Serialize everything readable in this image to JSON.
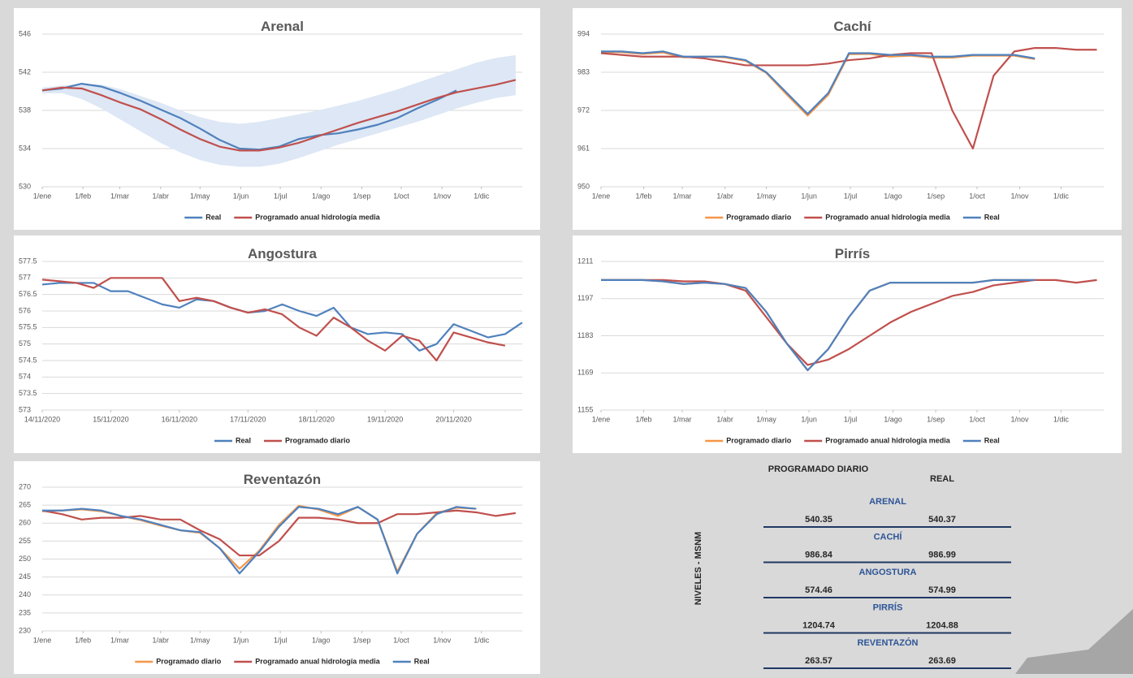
{
  "chart_data": [
    {
      "type": "line",
      "title": "Arenal",
      "x": [
        0,
        15,
        30,
        45,
        60,
        75,
        90,
        105,
        120,
        135,
        150,
        165,
        180,
        195,
        210,
        225,
        240,
        255,
        270,
        285,
        300,
        315,
        330,
        345,
        360
      ],
      "xlim": [
        0,
        365
      ],
      "xticks": [
        {
          "value": 0,
          "label": "1/ene"
        },
        {
          "value": 31,
          "label": "1/feb"
        },
        {
          "value": 59,
          "label": "1/mar"
        },
        {
          "value": 90,
          "label": "1/abr"
        },
        {
          "value": 120,
          "label": "1/may"
        },
        {
          "value": 151,
          "label": "1/jun"
        },
        {
          "value": 181,
          "label": "1/jul"
        },
        {
          "value": 212,
          "label": "1/ago"
        },
        {
          "value": 243,
          "label": "1/sep"
        },
        {
          "value": 273,
          "label": "1/oct"
        },
        {
          "value": 304,
          "label": "1/nov"
        },
        {
          "value": 334,
          "label": "1/dic"
        }
      ],
      "ylim": [
        530,
        546
      ],
      "yticks": [
        530,
        534,
        538,
        542,
        546
      ],
      "grid": true,
      "band_color": "#dde7f5",
      "band_upper": [
        540.4,
        540.6,
        540.8,
        540.7,
        540.2,
        539.5,
        538.8,
        538.0,
        537.3,
        536.8,
        536.6,
        536.8,
        537.2,
        537.6,
        538.0,
        538.5,
        539.0,
        539.6,
        540.2,
        540.9,
        541.6,
        542.3,
        543.0,
        543.5,
        543.8
      ],
      "band_lower": [
        539.8,
        539.8,
        539.2,
        538.2,
        537.0,
        535.8,
        534.6,
        533.6,
        532.8,
        532.3,
        532.1,
        532.1,
        532.4,
        533.0,
        533.7,
        534.4,
        535.0,
        535.6,
        536.2,
        536.8,
        537.5,
        538.2,
        538.8,
        539.3,
        539.6
      ],
      "series": [
        {
          "name": "Real",
          "color": "#4f81bd",
          "values": [
            540.1,
            540.3,
            540.8,
            540.5,
            539.8,
            539.0,
            538.1,
            537.2,
            536.1,
            534.9,
            534.0,
            533.9,
            534.2,
            535.0,
            535.4,
            535.6,
            536.0,
            536.5,
            537.2,
            538.2,
            539.1,
            540.1,
            null,
            null,
            null
          ]
        },
        {
          "name": "Programado anual hidrología media",
          "color": "#c0504d",
          "values": [
            540.1,
            540.4,
            540.3,
            539.6,
            538.8,
            538.1,
            537.1,
            536.0,
            535.0,
            534.2,
            533.8,
            533.8,
            534.1,
            534.6,
            535.3,
            536.0,
            536.7,
            537.3,
            537.9,
            538.6,
            539.3,
            539.9,
            540.3,
            540.7,
            541.2
          ]
        }
      ]
    },
    {
      "type": "line",
      "title": "Cachí",
      "x": [
        0,
        15,
        30,
        45,
        60,
        75,
        90,
        105,
        120,
        135,
        150,
        165,
        180,
        195,
        210,
        225,
        240,
        255,
        270,
        285,
        300,
        315,
        330,
        345,
        360
      ],
      "xlim": [
        0,
        365
      ],
      "xticks": [
        {
          "value": 0,
          "label": "1/ene"
        },
        {
          "value": 31,
          "label": "1/feb"
        },
        {
          "value": 59,
          "label": "1/mar"
        },
        {
          "value": 90,
          "label": "1/abr"
        },
        {
          "value": 120,
          "label": "1/may"
        },
        {
          "value": 151,
          "label": "1/jun"
        },
        {
          "value": 181,
          "label": "1/jul"
        },
        {
          "value": 212,
          "label": "1/ago"
        },
        {
          "value": 243,
          "label": "1/sep"
        },
        {
          "value": 273,
          "label": "1/oct"
        },
        {
          "value": 304,
          "label": "1/nov"
        },
        {
          "value": 334,
          "label": "1/dic"
        }
      ],
      "ylim": [
        950,
        994
      ],
      "yticks": [
        950,
        961,
        972,
        983,
        994
      ],
      "grid": true,
      "series": [
        {
          "name": "Programado diario",
          "color": "#f79646",
          "values": [
            988.8,
            988.8,
            988.3,
            988.7,
            987.3,
            987.5,
            987.3,
            986.3,
            982.8,
            976.5,
            970.5,
            976.5,
            988.2,
            988.3,
            987.5,
            987.8,
            987.2,
            987.2,
            987.8,
            987.8,
            987.8,
            986.8,
            null,
            null,
            null
          ]
        },
        {
          "name": "Programado anual hidrología media",
          "color": "#c0504d",
          "values": [
            988.5,
            988,
            987.5,
            987.5,
            987.5,
            987,
            986,
            985,
            985,
            985,
            985,
            985.5,
            986.5,
            987,
            988,
            988.5,
            988.5,
            972,
            961,
            982,
            989,
            990,
            990,
            989.5,
            989.5
          ]
        },
        {
          "name": "Real",
          "color": "#4f81bd",
          "values": [
            989,
            989,
            988.5,
            989,
            987.5,
            987.5,
            987.5,
            986.5,
            983,
            977,
            971,
            977,
            988.5,
            988.5,
            988,
            988,
            987.5,
            987.5,
            988,
            988,
            988,
            987,
            null,
            null,
            null
          ]
        }
      ]
    },
    {
      "type": "line",
      "title": "Angostura",
      "x": [
        0,
        0.25,
        0.5,
        0.75,
        1,
        1.25,
        1.5,
        1.75,
        2,
        2.25,
        2.5,
        2.75,
        3,
        3.25,
        3.5,
        3.75,
        4,
        4.25,
        4.5,
        4.75,
        5,
        5.25,
        5.5,
        5.75,
        6,
        6.25,
        6.5,
        6.75,
        7
      ],
      "xlim": [
        0,
        7
      ],
      "xticks": [
        {
          "value": 0,
          "label": "14/11/2020"
        },
        {
          "value": 1,
          "label": "15/11/2020"
        },
        {
          "value": 2,
          "label": "16/11/2020"
        },
        {
          "value": 3,
          "label": "17/11/2020"
        },
        {
          "value": 4,
          "label": "18/11/2020"
        },
        {
          "value": 5,
          "label": "19/11/2020"
        },
        {
          "value": 6,
          "label": "20/11/2020"
        }
      ],
      "ylim": [
        573,
        577.5
      ],
      "yticks": [
        573,
        573.5,
        574,
        574.5,
        575,
        575.5,
        576,
        576.5,
        577,
        577.5
      ],
      "grid": true,
      "series": [
        {
          "name": "Real",
          "color": "#4f81bd",
          "values": [
            576.8,
            576.85,
            576.85,
            576.85,
            576.6,
            576.6,
            576.4,
            576.2,
            576.1,
            576.35,
            576.3,
            576.1,
            575.95,
            576.0,
            576.2,
            576.0,
            575.85,
            576.1,
            575.5,
            575.3,
            575.35,
            575.3,
            574.8,
            575.0,
            575.6,
            575.4,
            575.2,
            575.3,
            575.65
          ]
        },
        {
          "name": "Programado diario",
          "color": "#c0504d",
          "values": [
            576.95,
            576.9,
            576.85,
            576.7,
            577,
            577,
            577,
            577,
            576.3,
            576.4,
            576.3,
            576.1,
            575.95,
            576.05,
            575.9,
            575.5,
            575.25,
            575.8,
            575.5,
            575.1,
            574.8,
            575.25,
            575.1,
            574.5,
            575.35,
            575.2,
            575.05,
            574.95,
            null
          ]
        }
      ]
    },
    {
      "type": "line",
      "title": "Pirrís",
      "x": [
        0,
        15,
        30,
        45,
        60,
        75,
        90,
        105,
        120,
        135,
        150,
        165,
        180,
        195,
        210,
        225,
        240,
        255,
        270,
        285,
        300,
        315,
        330,
        345,
        360
      ],
      "xlim": [
        0,
        365
      ],
      "xticks": [
        {
          "value": 0,
          "label": "1/ene"
        },
        {
          "value": 31,
          "label": "1/feb"
        },
        {
          "value": 59,
          "label": "1/mar"
        },
        {
          "value": 90,
          "label": "1/abr"
        },
        {
          "value": 120,
          "label": "1/may"
        },
        {
          "value": 151,
          "label": "1/jun"
        },
        {
          "value": 181,
          "label": "1/jul"
        },
        {
          "value": 212,
          "label": "1/ago"
        },
        {
          "value": 243,
          "label": "1/sep"
        },
        {
          "value": 273,
          "label": "1/oct"
        },
        {
          "value": 304,
          "label": "1/nov"
        },
        {
          "value": 334,
          "label": "1/dic"
        }
      ],
      "ylim": [
        1155,
        1211
      ],
      "yticks": [
        1155,
        1169,
        1183,
        1197,
        1211
      ],
      "grid": true,
      "series": [
        {
          "name": "Programado diario",
          "color": "#f79646",
          "values": [
            1204,
            1204,
            1204,
            1203.5,
            1202.5,
            1203,
            1202.5,
            1201,
            1192,
            1180,
            1170,
            1178,
            1190,
            1200,
            1203,
            1203,
            1203,
            1203,
            1203,
            1204,
            1204,
            1204,
            null,
            null,
            null
          ]
        },
        {
          "name": "Programado anual hidrología media",
          "color": "#c0504d",
          "values": [
            1204,
            1204,
            1204,
            1204,
            1203.5,
            1203.5,
            1202.5,
            1200,
            1190,
            1180,
            1172,
            1174,
            1178,
            1183,
            1188,
            1192,
            1195,
            1198,
            1199.5,
            1202,
            1203,
            1204,
            1204,
            1203,
            1204
          ]
        },
        {
          "name": "Real",
          "color": "#4f81bd",
          "values": [
            1204,
            1204,
            1204,
            1203.5,
            1202.5,
            1203,
            1202.5,
            1201,
            1192,
            1180,
            1170,
            1178,
            1190,
            1200,
            1203,
            1203,
            1203,
            1203,
            1203,
            1204,
            1204,
            1204,
            null,
            null,
            null
          ]
        }
      ]
    },
    {
      "type": "line",
      "title": "Reventazón",
      "x": [
        0,
        15,
        30,
        45,
        60,
        75,
        90,
        105,
        120,
        135,
        150,
        165,
        180,
        195,
        210,
        225,
        240,
        255,
        270,
        285,
        300,
        315,
        330,
        345,
        360
      ],
      "xlim": [
        0,
        365
      ],
      "xticks": [
        {
          "value": 0,
          "label": "1/ene"
        },
        {
          "value": 31,
          "label": "1/feb"
        },
        {
          "value": 59,
          "label": "1/mar"
        },
        {
          "value": 90,
          "label": "1/abr"
        },
        {
          "value": 120,
          "label": "1/may"
        },
        {
          "value": 151,
          "label": "1/jun"
        },
        {
          "value": 181,
          "label": "1/jul"
        },
        {
          "value": 212,
          "label": "1/ago"
        },
        {
          "value": 243,
          "label": "1/sep"
        },
        {
          "value": 273,
          "label": "1/oct"
        },
        {
          "value": 304,
          "label": "1/nov"
        },
        {
          "value": 334,
          "label": "1/dic"
        }
      ],
      "ylim": [
        230,
        270
      ],
      "yticks": [
        230,
        235,
        240,
        245,
        250,
        255,
        260,
        265,
        270
      ],
      "grid": true,
      "series": [
        {
          "name": "Programado diario",
          "color": "#f79646",
          "values": [
            263.3,
            263.5,
            263.8,
            263.3,
            262,
            260.8,
            259.3,
            258,
            257.3,
            253,
            247.3,
            252.3,
            259.5,
            264.8,
            263.8,
            262,
            264.5,
            261,
            246.5,
            257,
            262.8,
            264.3,
            264,
            null,
            null
          ]
        },
        {
          "name": "Programado anual hidrología media",
          "color": "#c0504d",
          "values": [
            263.5,
            262.5,
            261,
            261.5,
            261.5,
            262,
            261,
            261,
            258,
            255.5,
            251,
            251,
            255,
            261.5,
            261.5,
            261,
            260,
            260,
            262.5,
            262.5,
            263,
            263.5,
            263,
            262,
            262.8
          ]
        },
        {
          "name": "Real",
          "color": "#4f81bd",
          "values": [
            263.5,
            263.5,
            264,
            263.5,
            262,
            261,
            259.5,
            258,
            257.5,
            253,
            246,
            252,
            259,
            264.5,
            264,
            262.5,
            264.5,
            261,
            246,
            257,
            262.5,
            264.5,
            264,
            null,
            null
          ]
        }
      ]
    }
  ],
  "table": {
    "side_label": "NIVELES - MSNM",
    "headers": [
      "PROGRAMADO DIARIO",
      "REAL"
    ],
    "rows": [
      {
        "name": "ARENAL",
        "values": [
          "540.35",
          "540.37"
        ]
      },
      {
        "name": "CACHÍ",
        "values": [
          "986.84",
          "986.99"
        ]
      },
      {
        "name": "ANGOSTURA",
        "values": [
          "574.46",
          "574.99"
        ]
      },
      {
        "name": "PIRRÍS",
        "values": [
          "1204.74",
          "1204.88"
        ]
      },
      {
        "name": "REVENTAZÓN",
        "values": [
          "263.57",
          "263.69"
        ]
      }
    ]
  }
}
